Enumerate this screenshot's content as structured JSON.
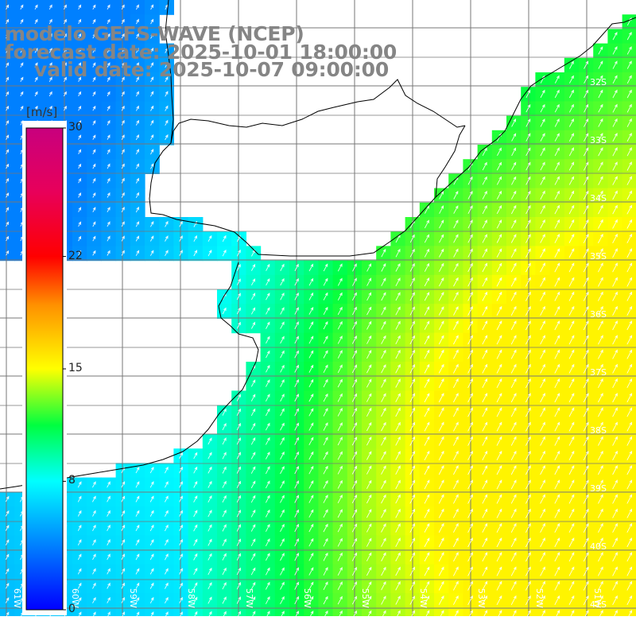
{
  "title": {
    "line1": "modelo GEFS-WAVE (NCEP)",
    "line2": "forecast date: 2025-10-01 18:00:00",
    "line3": "valid date: 2025-10-07 09:00:00"
  },
  "colorbar": {
    "unit": "[m/s]",
    "min": 0,
    "max": 30,
    "ticks": [
      {
        "value": 30,
        "label": "30"
      },
      {
        "value": 22,
        "label": "22"
      },
      {
        "value": 15,
        "label": "15"
      },
      {
        "value": 8,
        "label": "8"
      },
      {
        "value": 0,
        "label": "0"
      }
    ],
    "stops": [
      {
        "value": 0,
        "color": "#0000ff"
      },
      {
        "value": 4,
        "color": "#0080ff"
      },
      {
        "value": 8,
        "color": "#00ffff"
      },
      {
        "value": 11.5,
        "color": "#00ff40"
      },
      {
        "value": 15,
        "color": "#ffff00"
      },
      {
        "value": 19,
        "color": "#ff9000"
      },
      {
        "value": 22,
        "color": "#ff0000"
      },
      {
        "value": 26,
        "color": "#e8005a"
      },
      {
        "value": 30,
        "color": "#c8007e"
      }
    ]
  },
  "map": {
    "lat_labels": [
      "32S",
      "33S",
      "34S",
      "35S",
      "36S",
      "37S",
      "38S",
      "39S",
      "40S",
      "41S"
    ],
    "lon_labels": [
      "61W",
      "60W",
      "59W",
      "58W",
      "57W",
      "56W",
      "55W",
      "54W",
      "53W",
      "52W",
      "51W"
    ],
    "wind_direction_icon": "arrow-northeast-icon"
  }
}
